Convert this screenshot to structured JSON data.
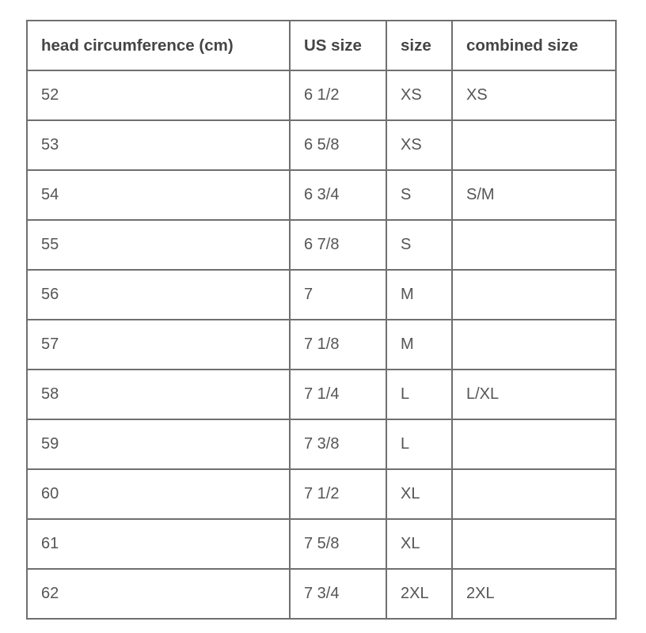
{
  "table": {
    "headers": [
      "head circumference (cm)",
      "US size",
      "size",
      "combined size"
    ],
    "rows": [
      [
        "52",
        "6 1/2",
        "XS",
        "XS"
      ],
      [
        "53",
        "6 5/8",
        "XS",
        ""
      ],
      [
        "54",
        "6 3/4",
        "S",
        "S/M"
      ],
      [
        "55",
        "6 7/8",
        "S",
        ""
      ],
      [
        "56",
        "7",
        "M",
        ""
      ],
      [
        "57",
        "7 1/8",
        "M",
        ""
      ],
      [
        "58",
        "7 1/4",
        "L",
        "L/XL"
      ],
      [
        "59",
        "7 3/8",
        "L",
        ""
      ],
      [
        "60",
        "7 1/2",
        "XL",
        ""
      ],
      [
        "61",
        "7 5/8",
        "XL",
        ""
      ],
      [
        "62",
        "7 3/4",
        "2XL",
        "2XL"
      ]
    ]
  }
}
